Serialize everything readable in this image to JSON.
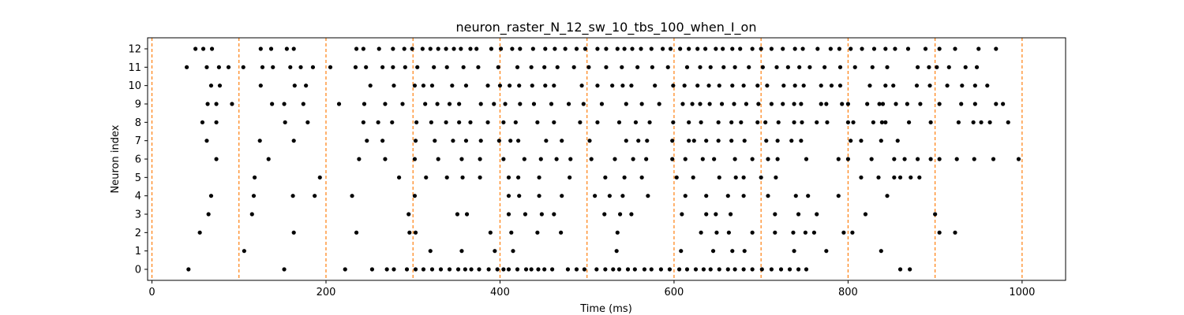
{
  "chart_data": {
    "type": "scatter",
    "title": "neuron_raster_N_12_sw_10_tbs_100_when_I_on",
    "xlabel": "Time (ms)",
    "ylabel": "Neuron index",
    "xlim": [
      -5,
      1050
    ],
    "ylim": [
      -0.6,
      12.6
    ],
    "xticks": [
      0,
      200,
      400,
      600,
      800,
      1000
    ],
    "yticks": [
      0,
      1,
      2,
      3,
      4,
      5,
      6,
      7,
      8,
      9,
      10,
      11,
      12
    ],
    "grid": false,
    "marker_color": "#000000",
    "vline_color": "#ff7f0e",
    "vlines": [
      0,
      100,
      200,
      300,
      400,
      500,
      600,
      700,
      800,
      900,
      1000
    ],
    "spikes": [
      {
        "neuron": 0,
        "times": [
          42,
          152,
          222,
          253,
          270,
          278,
          293,
          303,
          312,
          322,
          332,
          342,
          352,
          360,
          367,
          376,
          387,
          397,
          404,
          410,
          420,
          430,
          436,
          444,
          451,
          460,
          478,
          488,
          497,
          511,
          521,
          530,
          537,
          547,
          555,
          566,
          574,
          585,
          595,
          606,
          615,
          625,
          634,
          642,
          652,
          662,
          670,
          680,
          690,
          701,
          712,
          723,
          733,
          743,
          752,
          860,
          871
        ]
      },
      {
        "neuron": 1,
        "times": [
          106,
          320,
          356,
          394,
          415,
          534,
          608,
          645,
          667,
          681,
          738,
          775,
          838
        ]
      },
      {
        "neuron": 2,
        "times": [
          55,
          163,
          235,
          296,
          303,
          389,
          413,
          443,
          470,
          535,
          631,
          649,
          663,
          690,
          716,
          737,
          751,
          761,
          795,
          805,
          905,
          923
        ]
      },
      {
        "neuron": 3,
        "times": [
          65,
          115,
          295,
          351,
          362,
          410,
          429,
          448,
          462,
          520,
          538,
          551,
          609,
          637,
          648,
          665,
          716,
          743,
          764,
          820,
          900
        ]
      },
      {
        "neuron": 4,
        "times": [
          68,
          117,
          162,
          187,
          230,
          302,
          410,
          422,
          445,
          471,
          509,
          526,
          541,
          570,
          613,
          637,
          662,
          680,
          708,
          740,
          754,
          789,
          845
        ]
      },
      {
        "neuron": 5,
        "times": [
          118,
          193,
          284,
          315,
          339,
          357,
          377,
          410,
          421,
          445,
          480,
          521,
          543,
          563,
          603,
          622,
          652,
          671,
          680,
          700,
          717,
          815,
          835,
          853,
          860,
          872,
          882
        ]
      },
      {
        "neuron": 6,
        "times": [
          74,
          134,
          238,
          268,
          302,
          329,
          356,
          377,
          404,
          428,
          447,
          465,
          481,
          505,
          532,
          553,
          568,
          598,
          613,
          633,
          646,
          670,
          690,
          708,
          719,
          752,
          789,
          800,
          827,
          853,
          865,
          880,
          895,
          905,
          925,
          945,
          967,
          996
        ]
      },
      {
        "neuron": 7,
        "times": [
          63,
          124,
          163,
          247,
          265,
          303,
          325,
          346,
          361,
          378,
          399,
          412,
          421,
          453,
          471,
          503,
          545,
          559,
          569,
          598,
          617,
          623,
          637,
          651,
          666,
          681,
          706,
          719,
          735,
          746,
          803,
          815,
          838,
          857
        ]
      },
      {
        "neuron": 8,
        "times": [
          58,
          74,
          153,
          179,
          243,
          260,
          276,
          304,
          321,
          338,
          353,
          366,
          386,
          404,
          418,
          443,
          462,
          492,
          512,
          537,
          556,
          572,
          599,
          617,
          631,
          651,
          666,
          677,
          696,
          705,
          720,
          738,
          747,
          764,
          776,
          800,
          806,
          829,
          839,
          843,
          870,
          895,
          927,
          944,
          953,
          963,
          984
        ]
      },
      {
        "neuron": 9,
        "times": [
          64,
          74,
          92,
          138,
          152,
          174,
          215,
          244,
          268,
          288,
          314,
          328,
          342,
          353,
          378,
          393,
          406,
          423,
          439,
          459,
          479,
          496,
          517,
          545,
          563,
          583,
          610,
          621,
          630,
          641,
          655,
          669,
          683,
          697,
          712,
          725,
          738,
          746,
          769,
          775,
          793,
          800,
          822,
          836,
          840,
          855,
          868,
          883,
          905,
          930,
          946,
          970,
          978
        ]
      },
      {
        "neuron": 10,
        "times": [
          68,
          78,
          125,
          164,
          177,
          251,
          278,
          302,
          312,
          322,
          345,
          361,
          386,
          400,
          411,
          422,
          437,
          452,
          462,
          494,
          512,
          529,
          541,
          551,
          578,
          599,
          612,
          627,
          640,
          652,
          667,
          680,
          696,
          707,
          726,
          739,
          749,
          769,
          781,
          791,
          825,
          843,
          852,
          879,
          894,
          914,
          931,
          946,
          960
        ]
      },
      {
        "neuron": 11,
        "times": [
          40,
          63,
          77,
          88,
          105,
          127,
          139,
          159,
          171,
          185,
          205,
          234,
          246,
          265,
          277,
          291,
          305,
          324,
          339,
          358,
          375,
          398,
          420,
          436,
          451,
          466,
          485,
          502,
          522,
          540,
          558,
          575,
          593,
          615,
          630,
          642,
          657,
          670,
          686,
          702,
          718,
          731,
          744,
          756,
          773,
          791,
          808,
          828,
          845,
          880,
          893,
          902,
          916,
          935,
          948
        ]
      },
      {
        "neuron": 12,
        "times": [
          50,
          59,
          69,
          125,
          137,
          155,
          163,
          235,
          243,
          261,
          277,
          290,
          299,
          311,
          320,
          329,
          338,
          347,
          355,
          366,
          373,
          390,
          401,
          414,
          423,
          438,
          452,
          463,
          475,
          488,
          498,
          512,
          522,
          535,
          543,
          552,
          562,
          574,
          587,
          596,
          607,
          617,
          627,
          636,
          648,
          656,
          667,
          676,
          690,
          700,
          712,
          725,
          739,
          748,
          765,
          780,
          790,
          803,
          816,
          830,
          843,
          854,
          869,
          889,
          905,
          923,
          950,
          970
        ]
      }
    ]
  }
}
